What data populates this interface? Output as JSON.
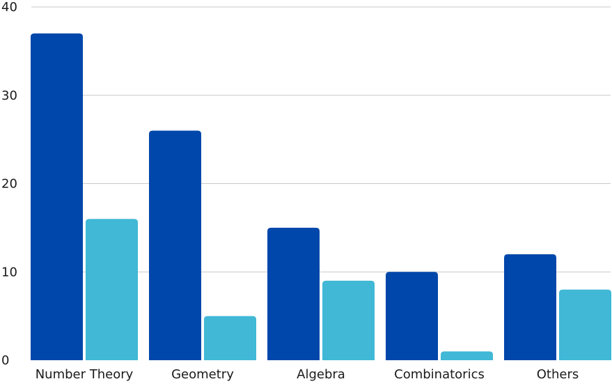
{
  "chart_data": {
    "type": "bar",
    "title": "",
    "xlabel": "",
    "ylabel": "",
    "categories": [
      "Number Theory",
      "Geometry",
      "Algebra",
      "Combinatorics",
      "Others"
    ],
    "ylim": [
      0,
      40
    ],
    "yticks": [
      0,
      10,
      20,
      30,
      40
    ],
    "grid": true,
    "legend": "none",
    "series": [
      {
        "values": [
          37,
          26,
          15,
          10,
          12
        ],
        "color": "#0047AB"
      },
      {
        "values": [
          16,
          5,
          9,
          1,
          8
        ],
        "color": "#40B8D6"
      }
    ]
  }
}
